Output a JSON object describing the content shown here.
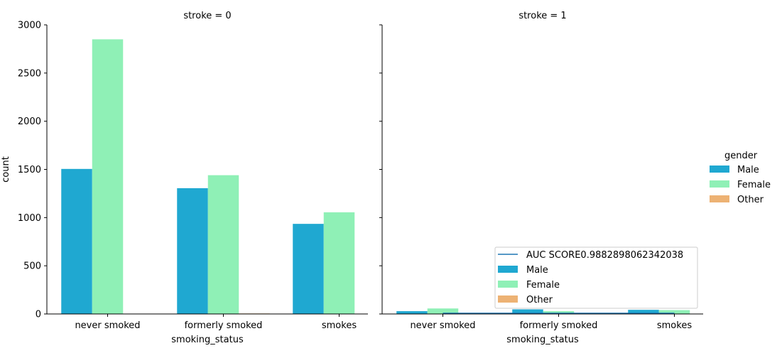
{
  "chart_data": [
    {
      "type": "bar",
      "title": "stroke = 0",
      "xlabel": "smoking_status",
      "ylabel": "count",
      "categories": [
        "never smoked",
        "formerly smoked",
        "smokes"
      ],
      "ylim": [
        0,
        3000
      ],
      "yticks": [
        0,
        500,
        1000,
        1500,
        2000,
        2500,
        3000
      ],
      "series": [
        {
          "name": "Male",
          "values": [
            1505,
            1305,
            935
          ]
        },
        {
          "name": "Female",
          "values": [
            2850,
            1440,
            1055
          ]
        },
        {
          "name": "Other",
          "values": [
            0,
            5,
            0
          ]
        }
      ]
    },
    {
      "type": "bar",
      "title": "stroke = 1",
      "xlabel": "smoking_status",
      "ylabel": "",
      "categories": [
        "never smoked",
        "formerly smoked",
        "smokes"
      ],
      "ylim": [
        0,
        3000
      ],
      "series": [
        {
          "name": "Male",
          "values": [
            29,
            48,
            43
          ]
        },
        {
          "name": "Female",
          "values": [
            57,
            29,
            40
          ]
        },
        {
          "name": "Other",
          "values": [
            0,
            0,
            0
          ]
        }
      ],
      "line": {
        "name": "AUC SCORE0.9882898062342038",
        "y": 7
      },
      "legend": {
        "placement": "lower-right",
        "entries": [
          {
            "label": "AUC SCORE0.9882898062342038",
            "kind": "line"
          },
          {
            "label": "Male",
            "kind": "patch"
          },
          {
            "label": "Female",
            "kind": "patch"
          },
          {
            "label": "Other",
            "kind": "patch"
          }
        ]
      }
    }
  ],
  "figure_legend": {
    "title": "gender",
    "placement": "right",
    "entries": [
      "Male",
      "Female",
      "Other"
    ]
  },
  "colors": {
    "Male": "#1fa8d1",
    "Female": "#8ff0b6",
    "Other": "#edb274",
    "line": "#1f77b4",
    "axis": "#000000"
  }
}
